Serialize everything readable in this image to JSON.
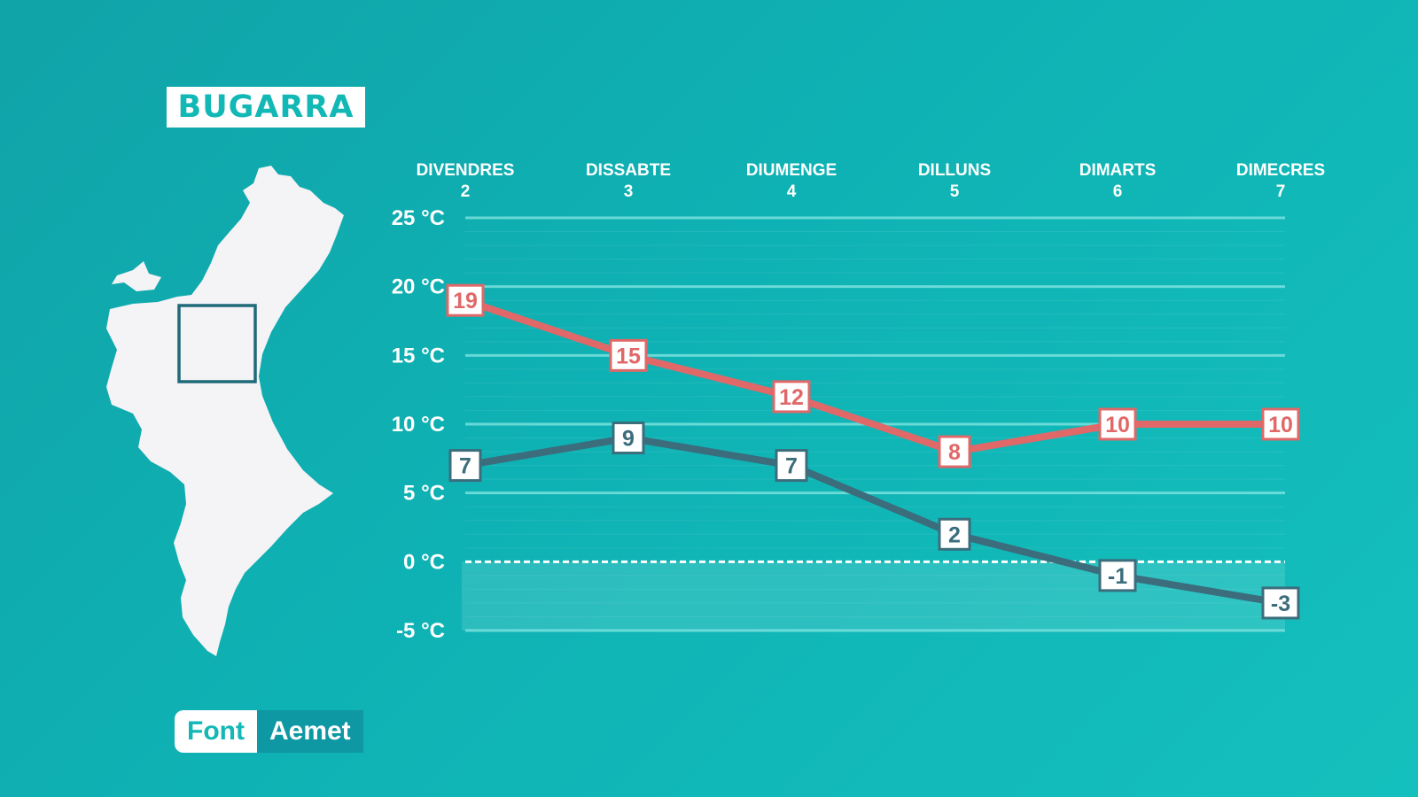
{
  "location": "BUGARRA",
  "source": {
    "label": "Font",
    "name": "Aemet"
  },
  "colors": {
    "max_series": "#e06868",
    "min_series": "#3b6d7c",
    "grid": "#7fe3e0",
    "zero_line": "#ffffff"
  },
  "chart_data": {
    "type": "line",
    "categories": [
      {
        "day": "DIVENDRES",
        "date": "2"
      },
      {
        "day": "DISSABTE",
        "date": "3"
      },
      {
        "day": "DIUMENGE",
        "date": "4"
      },
      {
        "day": "DILLUNS",
        "date": "5"
      },
      {
        "day": "DIMARTS",
        "date": "6"
      },
      {
        "day": "DIMECRES",
        "date": "7"
      }
    ],
    "series": [
      {
        "key": "max",
        "values": [
          19,
          15,
          12,
          8,
          10,
          10
        ],
        "color": "#e06868"
      },
      {
        "key": "min",
        "values": [
          7,
          9,
          7,
          2,
          -1,
          -3
        ],
        "color": "#3b6d7c"
      }
    ],
    "ylim": [
      -5,
      25
    ],
    "yticks": [
      {
        "value": 25,
        "label": "25 °C"
      },
      {
        "value": 20,
        "label": "20 °C"
      },
      {
        "value": 15,
        "label": "15 °C"
      },
      {
        "value": 10,
        "label": "10 °C"
      },
      {
        "value": 5,
        "label": "5 °C"
      },
      {
        "value": 0,
        "label": "0 °C"
      },
      {
        "value": -5,
        "label": "-5 °C"
      }
    ],
    "grid": true,
    "zero_line_dashed": true
  }
}
